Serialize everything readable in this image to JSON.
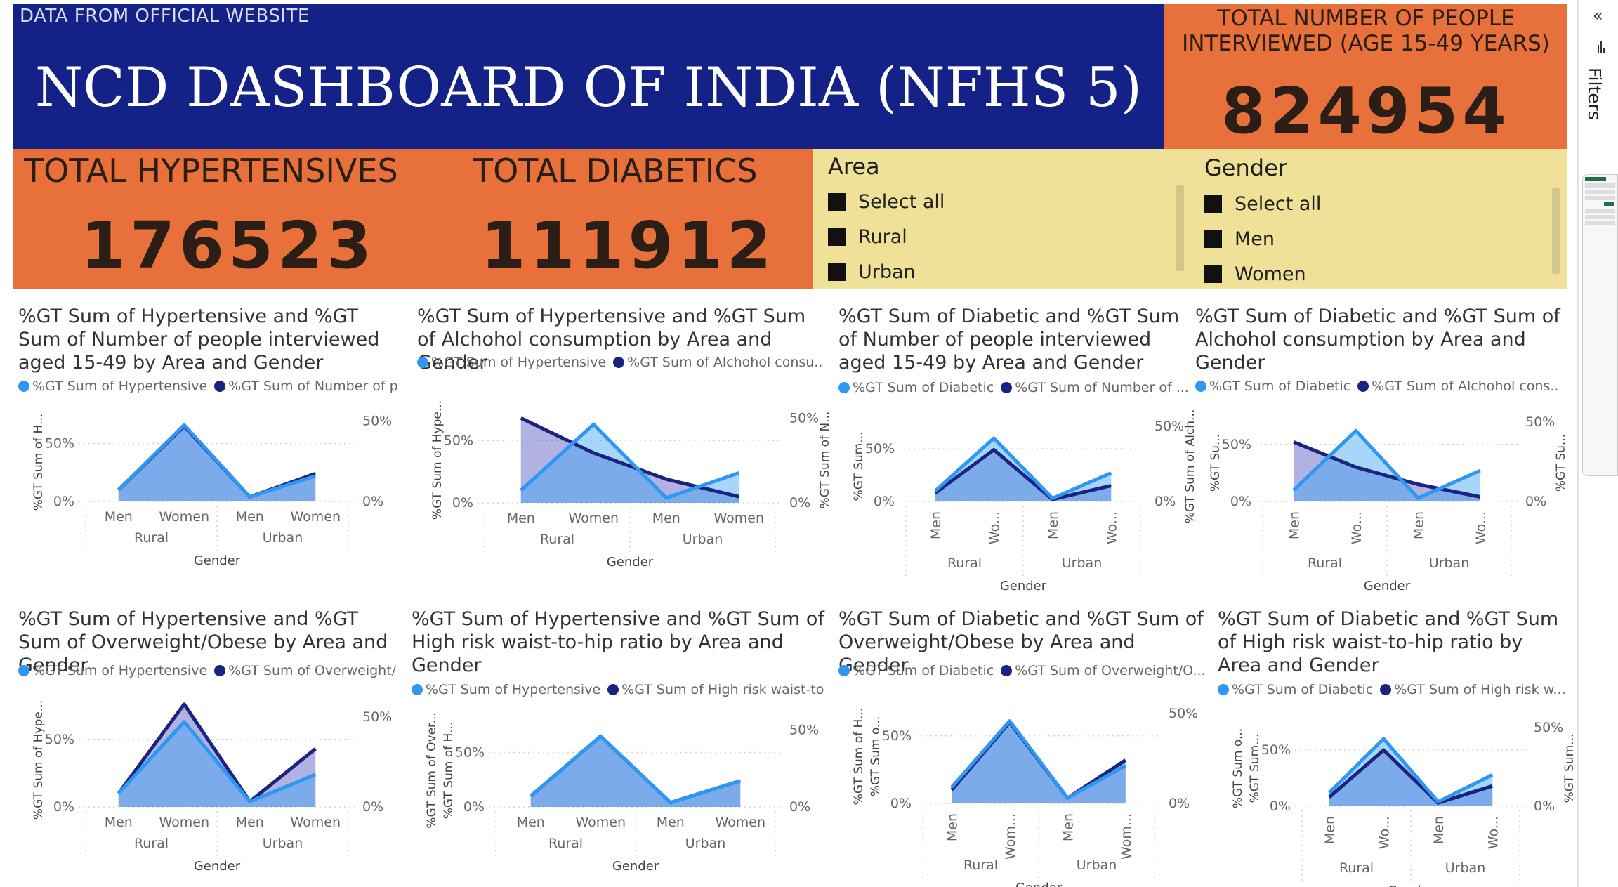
{
  "header": {
    "note": "DATA FROM OFFICIAL WEBSITE",
    "title": "NCD DASHBOARD OF INDIA (NFHS 5)"
  },
  "kpis": {
    "interviewed": {
      "label_line1": "TOTAL NUMBER OF PEOPLE",
      "label_line2": "INTERVIEWED (AGE 15-49 YEARS)",
      "value": "824954"
    },
    "hypertensives": {
      "label": "TOTAL HYPERTENSIVES",
      "value": "176523"
    },
    "diabetics": {
      "label": "TOTAL DIABETICS",
      "value": "111912"
    }
  },
  "slicers": {
    "area": {
      "title": "Area",
      "options": [
        "Select all",
        "Rural",
        "Urban"
      ]
    },
    "gender": {
      "title": "Gender",
      "options": [
        "Select all",
        "Men",
        "Women"
      ]
    }
  },
  "filters_pane": {
    "label": "Filters",
    "collapse_glyph": "«"
  },
  "colors": {
    "header_bg": "#142287",
    "kpi_bg": "#e8703a",
    "slicer_bg": "#efe197",
    "series_light": "#2f97f2",
    "series_dark": "#1a237e"
  },
  "chart_data": [
    {
      "type": "area",
      "title": "%GT Sum of Hypertensive and %GT Sum of Number of people interviewed aged 15-49 by Area and Gender",
      "legend": [
        "%GT Sum of Hypertensive",
        "%GT Sum of Number of p..."
      ],
      "y_left_title": "%GT Sum of H...",
      "y_right_title": "",
      "categories": [
        "Men",
        "Women",
        "Men",
        "Women"
      ],
      "groups": [
        "Rural",
        "Urban"
      ],
      "xlabel": "Gender",
      "yticks_left": [
        "50%",
        "0%"
      ],
      "yticks_right": [
        "50%",
        "0%"
      ],
      "rotate_ticks": false,
      "series": [
        {
          "name": "%GT Sum of Hypertensive",
          "values": [
            10,
            66,
            4,
            22
          ]
        },
        {
          "name": "%GT Sum of Number of people interviewed aged 15-49",
          "values": [
            10,
            65,
            4,
            24
          ]
        }
      ]
    },
    {
      "type": "area",
      "title": "%GT Sum of Hypertensive and %GT Sum of Alchohol consumption by Area and Gender",
      "legend": [
        "%GT Sum of Hypertensive",
        "%GT Sum of Alchohol consu..."
      ],
      "y_left_title": "%GT Sum of Hype...",
      "y_right_title": "%GT Sum of N...",
      "categories": [
        "Men",
        "Women",
        "Men",
        "Women"
      ],
      "groups": [
        "Rural",
        "Urban"
      ],
      "xlabel": "Gender",
      "yticks_left": [
        "50%",
        "0%"
      ],
      "yticks_right": [
        "50%",
        "0%"
      ],
      "rotate_ticks": false,
      "series": [
        {
          "name": "%GT Sum of Hypertensive",
          "values": [
            10,
            63,
            4,
            24
          ]
        },
        {
          "name": "%GT Sum of Alchohol consumption",
          "values": [
            68,
            40,
            19,
            5
          ]
        }
      ]
    },
    {
      "type": "area",
      "title": "%GT Sum of Diabetic and %GT Sum of Number of people interviewed aged 15-49 by Area and Gender",
      "legend": [
        "%GT Sum of Diabetic",
        "%GT Sum of Number of ..."
      ],
      "y_left_title": "%GT Sum...",
      "y_right_title": "%GT Sum of Alch...",
      "categories": [
        "Men",
        "Wo...",
        "Men",
        "Wo..."
      ],
      "groups": [
        "Rural",
        "Urban"
      ],
      "xlabel": "Gender",
      "yticks_left": [
        "50%",
        "0%"
      ],
      "yticks_right": [
        "50%",
        "0%"
      ],
      "rotate_ticks": true,
      "series": [
        {
          "name": "%GT Sum of Diabetic",
          "values": [
            10,
            60,
            3,
            27
          ]
        },
        {
          "name": "%GT Sum of Number of people interviewed aged 15-49",
          "values": [
            8,
            49,
            2,
            15
          ]
        }
      ]
    },
    {
      "type": "area",
      "title": "%GT Sum of Diabetic and %GT Sum of Alchohol consumption by Area and Gender",
      "legend": [
        "%GT Sum of Diabetic",
        "%GT Sum of Alchohol cons..."
      ],
      "y_left_title": "%GT Su...",
      "y_right_title": "%GT Su...",
      "categories": [
        "Men",
        "Wo...",
        "Men",
        "Wo..."
      ],
      "groups": [
        "Rural",
        "Urban"
      ],
      "xlabel": "Gender",
      "yticks_left": [
        "50%",
        "0%"
      ],
      "yticks_right": [
        "50%",
        "0%"
      ],
      "rotate_ticks": true,
      "series": [
        {
          "name": "%GT Sum of Diabetic",
          "values": [
            10,
            62,
            3,
            27
          ]
        },
        {
          "name": "%GT Sum of Alchohol consumption",
          "values": [
            52,
            30,
            15,
            4
          ]
        }
      ]
    },
    {
      "type": "area",
      "title": "%GT Sum of Hypertensive and %GT Sum of Overweight/Obese by Area and Gender",
      "legend": [
        "%GT Sum of Hypertensive",
        "%GT Sum of Overweight/..."
      ],
      "y_left_title": "%GT Sum of Hype...",
      "y_right_title": "",
      "categories": [
        "Men",
        "Women",
        "Men",
        "Women"
      ],
      "groups": [
        "Rural",
        "Urban"
      ],
      "xlabel": "Gender",
      "yticks_left": [
        "50%",
        "0%"
      ],
      "yticks_right": [
        "50%",
        "0%"
      ],
      "rotate_ticks": false,
      "series": [
        {
          "name": "%GT Sum of Hypertensive",
          "values": [
            10,
            63,
            4,
            24
          ]
        },
        {
          "name": "%GT Sum of Overweight/Obese",
          "values": [
            10,
            76,
            4,
            43
          ]
        }
      ]
    },
    {
      "type": "area",
      "title": "%GT Sum of Hypertensive and %GT Sum of High risk waist-to-hip ratio by Area and Gender",
      "legend": [
        "%GT Sum of Hypertensive",
        "%GT Sum of High risk waist-to..."
      ],
      "y_left_title": "%GT Sum of H...",
      "y_right_title": "",
      "y_left_outer_title": "%GT Sum of Over...",
      "categories": [
        "Men",
        "Women",
        "Men",
        "Women"
      ],
      "groups": [
        "Rural",
        "Urban"
      ],
      "xlabel": "Gender",
      "yticks_left": [
        "50%",
        "0%"
      ],
      "yticks_right": [
        "50%",
        "0%"
      ],
      "rotate_ticks": false,
      "series": [
        {
          "name": "%GT Sum of Hypertensive",
          "values": [
            10,
            65,
            4,
            24
          ]
        },
        {
          "name": "%GT Sum of High risk waist-to-hip ratio",
          "values": [
            10,
            65,
            4,
            24
          ]
        }
      ]
    },
    {
      "type": "area",
      "title": "%GT Sum of Diabetic and %GT Sum of Overweight/Obese by Area and Gender",
      "legend": [
        "%GT Sum of Diabetic",
        "%GT Sum of Overweight/O..."
      ],
      "y_left_title": "%GT Sum o...",
      "y_right_title": "",
      "y_left_outer_title": "%GT Sum of H...",
      "categories": [
        "Men",
        "Wom...",
        "Men",
        "Wom..."
      ],
      "groups": [
        "Rural",
        "Urban"
      ],
      "xlabel": "Gender",
      "yticks_left": [
        "50%",
        "0%"
      ],
      "yticks_right": [
        "50%",
        "0%"
      ],
      "rotate_ticks": true,
      "series": [
        {
          "name": "%GT Sum of Diabetic",
          "values": [
            12,
            61,
            4,
            28
          ]
        },
        {
          "name": "%GT Sum of Overweight/Obese",
          "values": [
            10,
            60,
            4,
            32
          ]
        }
      ]
    },
    {
      "type": "area",
      "title": "%GT Sum of Diabetic and %GT Sum of High risk waist-to-hip ratio by Area and Gender",
      "legend": [
        "%GT Sum of Diabetic",
        "%GT Sum of High risk w..."
      ],
      "y_left_title": "%GT Sum...",
      "y_right_title": "%GT Sum...",
      "y_left_outer_title": "%GT Sum o...",
      "categories": [
        "Men",
        "Wo...",
        "Men",
        "Wo..."
      ],
      "groups": [
        "Rural",
        "Urban"
      ],
      "xlabel": "Gender",
      "yticks_left": [
        "50%",
        "0%"
      ],
      "yticks_right": [
        "50%",
        "0%"
      ],
      "rotate_ticks": true,
      "series": [
        {
          "name": "%GT Sum of Diabetic",
          "values": [
            12,
            60,
            4,
            28
          ]
        },
        {
          "name": "%GT Sum of High risk waist-to-hip ratio",
          "values": [
            8,
            50,
            3,
            18
          ]
        }
      ]
    }
  ]
}
